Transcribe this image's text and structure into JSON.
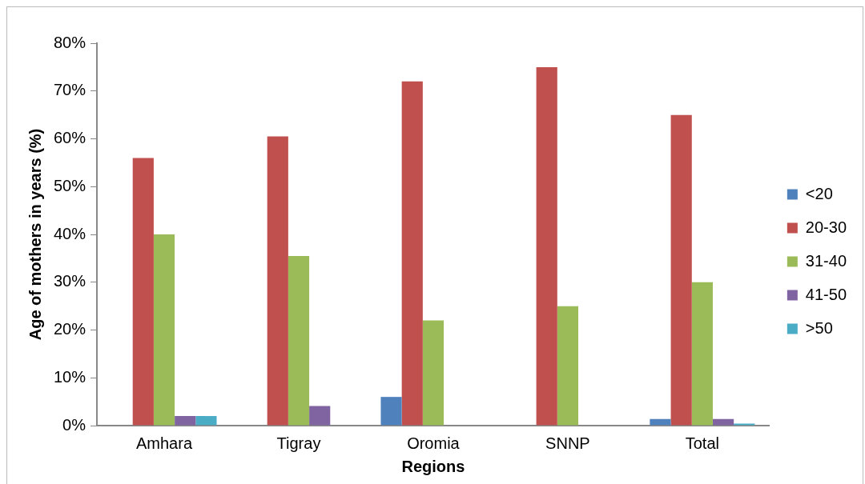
{
  "chart_data": {
    "type": "bar",
    "xlabel": "Regions",
    "ylabel": "Age of mothers in years (%)",
    "categories": [
      "Amhara",
      "Tigray",
      "Oromia",
      "SNNP",
      "Total"
    ],
    "series": [
      {
        "name": "<20",
        "color": "#4f81bd",
        "values": [
          0,
          0,
          6,
          0,
          1.4
        ]
      },
      {
        "name": "20-30",
        "color": "#c0504d",
        "values": [
          56,
          60.5,
          72,
          75,
          65
        ]
      },
      {
        "name": "31-40",
        "color": "#9bbb59",
        "values": [
          40,
          35.5,
          22,
          25,
          30
        ]
      },
      {
        "name": "41-50",
        "color": "#8064a2",
        "values": [
          2,
          4.1,
          0,
          0,
          1.4
        ]
      },
      {
        "name": ">50",
        "color": "#4bacc6",
        "values": [
          2,
          0,
          0,
          0,
          0.4
        ]
      }
    ],
    "ylim": [
      0,
      80
    ],
    "yticks": [
      {
        "value": 0,
        "label": "0%"
      },
      {
        "value": 10,
        "label": "10%"
      },
      {
        "value": 20,
        "label": "20%"
      },
      {
        "value": 30,
        "label": "30%"
      },
      {
        "value": 40,
        "label": "40%"
      },
      {
        "value": 50,
        "label": "50%"
      },
      {
        "value": 60,
        "label": "60%"
      },
      {
        "value": 70,
        "label": "70%"
      },
      {
        "value": 80,
        "label": "80%"
      }
    ],
    "grid": false,
    "legend": "right"
  }
}
